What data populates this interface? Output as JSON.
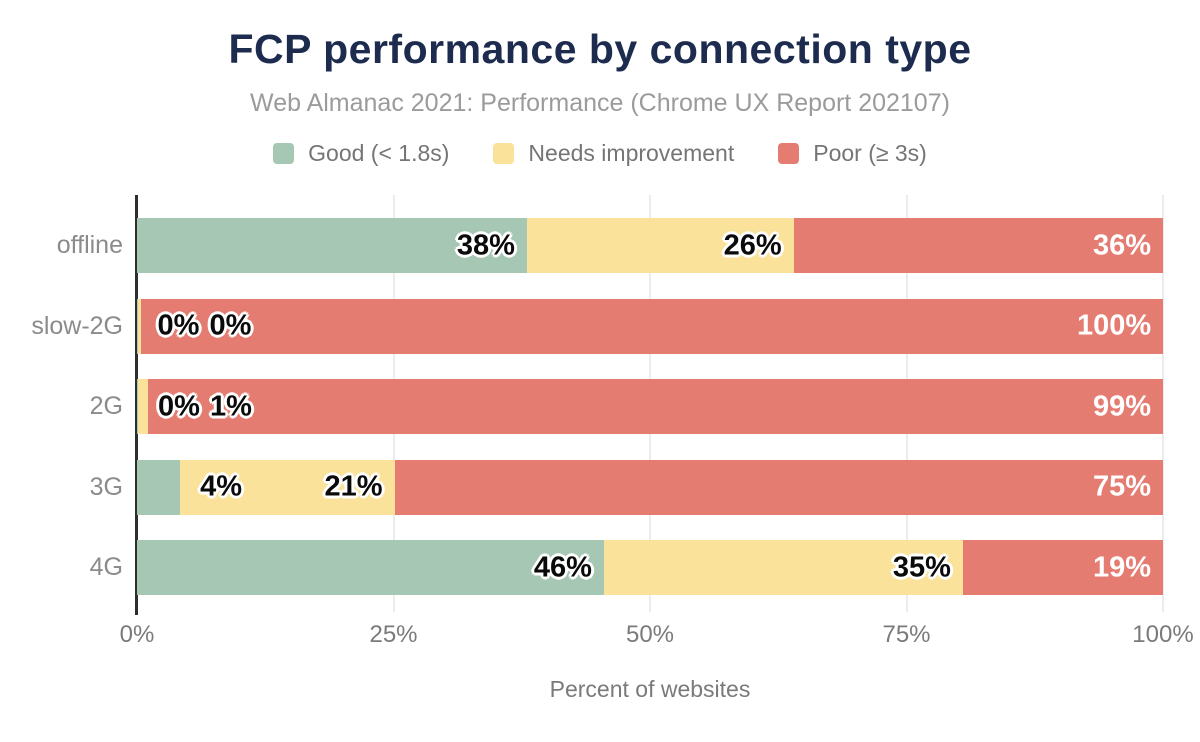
{
  "header": {
    "title": "FCP performance by connection type",
    "subtitle": "Web Almanac 2021: Performance (Chrome UX Report 202107)"
  },
  "legend": {
    "items": [
      {
        "label": "Good (< 1.8s)",
        "color": "#a6c7b4"
      },
      {
        "label": "Needs improvement",
        "color": "#fbe29a"
      },
      {
        "label": "Poor (≥ 3s)",
        "color": "#e57c72"
      }
    ]
  },
  "chart_data": {
    "type": "bar",
    "variant": "horizontal-stacked",
    "title": "FCP performance by connection type",
    "subtitle": "Web Almanac 2021: Performance (Chrome UX Report 202107)",
    "categories": [
      "offline",
      "slow-2G",
      "2G",
      "3G",
      "4G"
    ],
    "series": [
      {
        "name": "Good (< 1.8s)",
        "color": "#a6c7b4",
        "value_label_style": "dark",
        "values": [
          38,
          0,
          0,
          4,
          46
        ],
        "render_widths": [
          38,
          0.05,
          0.1,
          4.2,
          45.5
        ]
      },
      {
        "name": "Needs improvement",
        "color": "#fbe29a",
        "value_label_style": "dark",
        "values": [
          26,
          0,
          1,
          21,
          35
        ],
        "render_widths": [
          26,
          0.3,
          0.95,
          20.9,
          35
        ]
      },
      {
        "name": "Poor (≥ 3s)",
        "color": "#e57c72",
        "value_label_style": "light",
        "values": [
          36,
          100,
          99,
          75,
          19
        ],
        "render_widths": [
          36,
          99.65,
          98.95,
          74.9,
          19.5
        ]
      }
    ],
    "value_suffix": "%",
    "xlabel": "Percent of websites",
    "xlim": [
      0,
      100
    ],
    "xticks": [
      "0%",
      "25%",
      "50%",
      "75%",
      "100%"
    ],
    "xtick_values": [
      0,
      25,
      50,
      75,
      100
    ],
    "grid": "vertical",
    "legend_position": "top"
  },
  "colors": {
    "title": "#1d2c4e",
    "subtitle": "#9b9b9b",
    "legend_text": "#757575",
    "axis_line": "#2e2e2e",
    "gridline": "#ececec",
    "tick_text": "#7a7a7a",
    "category_text": "#8b8b8b",
    "background": "#ffffff"
  }
}
